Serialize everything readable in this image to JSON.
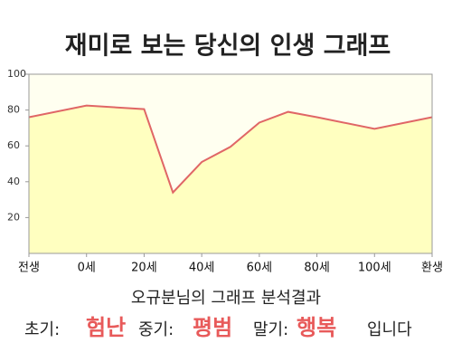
{
  "chart_data": {
    "type": "area",
    "title": "재미로 보는 당신의 인생 그래프",
    "x": [
      -20,
      0,
      20,
      30,
      40,
      50,
      60,
      70,
      80,
      100,
      120
    ],
    "values": [
      76,
      82.5,
      80.5,
      34,
      51,
      59.5,
      73,
      79,
      76,
      69.5,
      76
    ],
    "color": "#e06666",
    "fill": "#ffffc0",
    "background": "#fffff0",
    "xlim": [
      -20,
      120
    ],
    "xticks": [
      {
        "value": -20,
        "label": "전생"
      },
      {
        "value": 0,
        "label": "0세"
      },
      {
        "value": 20,
        "label": "20세"
      },
      {
        "value": 40,
        "label": "40세"
      },
      {
        "value": 60,
        "label": "60세"
      },
      {
        "value": 80,
        "label": "80세"
      },
      {
        "value": 100,
        "label": "100세"
      },
      {
        "value": 120,
        "label": "환생"
      }
    ],
    "ylim": [
      0,
      100
    ],
    "yticks": [
      20,
      40,
      60,
      80,
      100
    ]
  },
  "result": {
    "heading": "오규분님의 그래프 분석결과",
    "parts": [
      {
        "label": "초기:",
        "word": "험난"
      },
      {
        "label": "중기:",
        "word": "평범"
      },
      {
        "label": "말기:",
        "word": "행복"
      }
    ],
    "ending": "입니다"
  }
}
